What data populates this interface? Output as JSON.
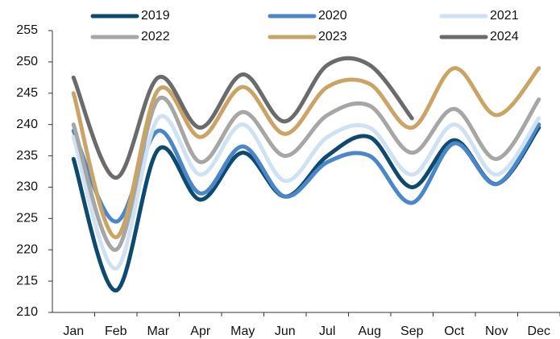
{
  "chart_data": {
    "type": "line",
    "categories": [
      "Jan",
      "Feb",
      "Mar",
      "Apr",
      "May",
      "Jun",
      "Jul",
      "Aug",
      "Sep",
      "Oct",
      "Nov",
      "Dec"
    ],
    "series": [
      {
        "name": "2019",
        "color": "#0d4a6e",
        "values": [
          234.5,
          213.5,
          236,
          228,
          235.5,
          228.5,
          235,
          238,
          230,
          237.5,
          230.5,
          239.5
        ]
      },
      {
        "name": "2020",
        "color": "#4a86c8",
        "values": [
          239,
          224.5,
          239,
          229,
          236.5,
          228.5,
          234,
          235,
          227.5,
          237,
          230.5,
          240
        ]
      },
      {
        "name": "2021",
        "color": "#cfe2f3",
        "values": [
          238,
          217,
          241,
          232,
          240,
          231,
          238,
          239.5,
          232,
          240,
          232,
          241
        ]
      },
      {
        "name": "2022",
        "color": "#a6a6a6",
        "values": [
          240,
          220,
          244,
          234,
          242,
          235,
          241.5,
          243,
          235.5,
          242.5,
          234.5,
          244
        ]
      },
      {
        "name": "2023",
        "color": "#c9a464",
        "values": [
          245,
          222,
          245.5,
          238,
          246,
          238.5,
          246,
          246.5,
          239.5,
          249,
          241.5,
          249
        ]
      },
      {
        "name": "2024",
        "color": "#6b6b6b",
        "values": [
          247.5,
          231.5,
          247.5,
          239.5,
          248,
          240.5,
          249.5,
          249.5,
          241,
          null,
          null,
          null
        ]
      }
    ],
    "ylim": [
      210,
      255
    ],
    "yticks": [
      210,
      215,
      220,
      225,
      230,
      235,
      240,
      245,
      250,
      255
    ],
    "grid": false
  }
}
